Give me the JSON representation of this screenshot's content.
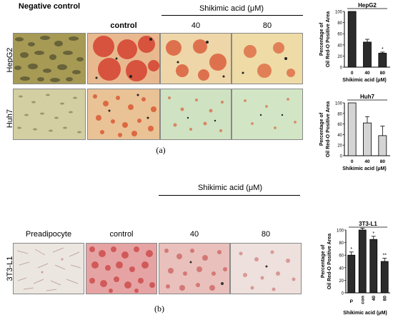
{
  "panel_a": {
    "column_headers": [
      "Negative control",
      "control",
      "40",
      "80"
    ],
    "treatment_label": "Shikimic acid (μM)",
    "row_labels": [
      "HepG2",
      "Huh7"
    ],
    "caption": "(a)"
  },
  "panel_b": {
    "column_headers": [
      "Preadipocyte",
      "control",
      "40",
      "80"
    ],
    "treatment_label": "Shikimic acid (μM)",
    "row_label": "3T3-L1",
    "caption": "(b)"
  },
  "chart_data": [
    {
      "type": "bar",
      "title": "HepG2",
      "categories": [
        "0",
        "40",
        "80"
      ],
      "values": [
        100,
        45,
        25
      ],
      "errors": [
        0,
        5,
        2
      ],
      "significance": [
        "",
        "",
        "*"
      ],
      "ylabel": "Percentage of Oil Red-O Positive Area",
      "xlabel": "Shikimic acid (μM)",
      "ylim": [
        0,
        100
      ],
      "yticks": [
        0,
        20,
        40,
        60,
        80,
        100
      ],
      "bar_color": "#2b2b2b"
    },
    {
      "type": "bar",
      "title": "Huh7",
      "categories": [
        "0",
        "40",
        "80"
      ],
      "values": [
        100,
        62,
        38
      ],
      "errors": [
        0,
        12,
        18
      ],
      "significance": [
        "",
        "",
        ""
      ],
      "ylabel": "Percentage of Oil Red-O Positive Area",
      "xlabel": "Shikimic acid (μM)",
      "ylim": [
        0,
        100
      ],
      "yticks": [
        0,
        20,
        40,
        60,
        80,
        100
      ],
      "bar_color": "#d4d4d4"
    },
    {
      "type": "bar",
      "title": "3T3-L1",
      "categories": [
        "P",
        "con",
        "40",
        "80"
      ],
      "values": [
        60,
        100,
        85,
        50
      ],
      "errors": [
        5,
        3,
        5,
        5
      ],
      "significance": [
        "*",
        "",
        "*",
        "**"
      ],
      "ylabel": "Percentage of Oil Red-O Positive Area",
      "xlabel": "Shikimic acid (μM)",
      "ylim": [
        0,
        100
      ],
      "yticks": [
        0,
        20,
        40,
        60,
        80,
        100
      ],
      "bar_color": "#2b2b2b"
    }
  ]
}
